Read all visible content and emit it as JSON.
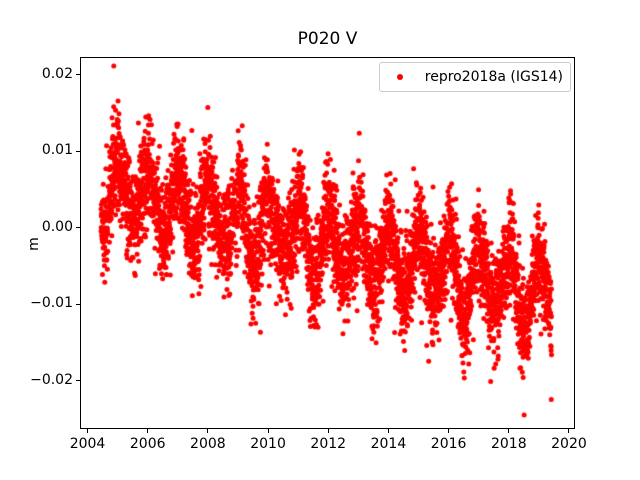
{
  "chart_data": {
    "type": "scatter",
    "title": "P020 V",
    "xlabel": "",
    "ylabel": "m",
    "xlim": [
      2003.75,
      2020.2
    ],
    "ylim": [
      -0.0263,
      0.0223
    ],
    "grid": false,
    "xticks": {
      "values": [
        2004,
        2006,
        2008,
        2010,
        2012,
        2014,
        2016,
        2018,
        2020
      ],
      "labels": [
        "2004",
        "2006",
        "2008",
        "2010",
        "2012",
        "2014",
        "2016",
        "2018",
        "2020"
      ]
    },
    "yticks": {
      "values": [
        0.02,
        0.01,
        0.0,
        -0.01,
        -0.02
      ],
      "labels": [
        "0.02",
        "0.01",
        "0.00",
        "−0.01",
        "−0.02"
      ]
    },
    "legend": {
      "position": "upper right",
      "entries": [
        {
          "label": "repro2018a (IGS14)",
          "marker": "point",
          "color": "#ff0000"
        }
      ]
    },
    "series": [
      {
        "name": "repro2018a (IGS14)",
        "color": "#ff0000",
        "marker": "point",
        "marker_diameter_px": 5,
        "t_start": 2004.45,
        "t_end": 2019.42,
        "samples_per_year": 365,
        "gap_probability": 0.1,
        "trend_start_m": 0.005,
        "trend_slope_m_per_yr": -0.00093,
        "seasonal_amplitude_m": 0.0042,
        "seasonal_amplitude_variation": 0.35,
        "seasonal_peak_year_fraction": 0.02,
        "noise_sd_m": 0.0031,
        "outlier_probability": 0.05,
        "outlier_extra_sd_m": 0.004,
        "observed_max_m": 0.0201,
        "observed_min_m": -0.0241,
        "seed": 42
      }
    ]
  }
}
